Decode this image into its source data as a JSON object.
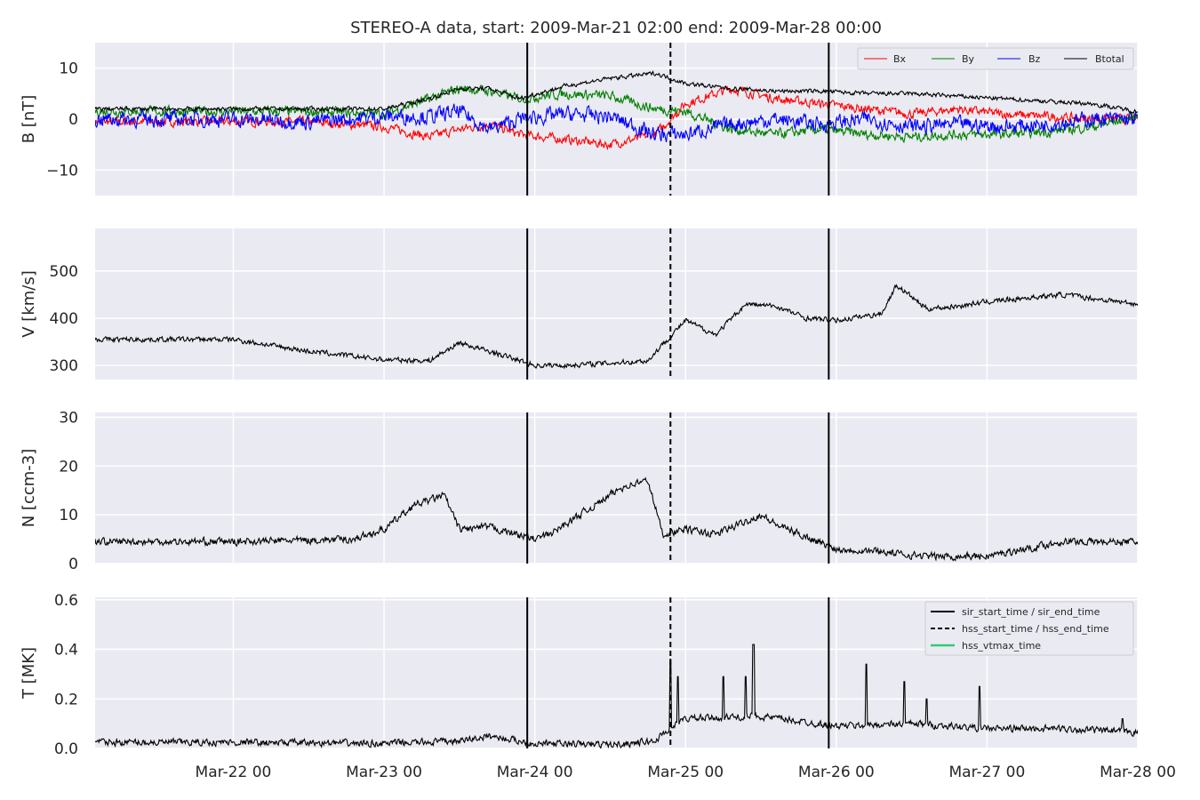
{
  "title": "STEREO-A data, start: 2009-Mar-21 02:00  end: 2009-Mar-28 00:00",
  "x_axis": {
    "tick_labels": [
      "Mar-22 00",
      "Mar-23 00",
      "Mar-24 00",
      "Mar-25 00",
      "Mar-26 00",
      "Mar-27 00",
      "Mar-28 00"
    ]
  },
  "colors": {
    "Bx": "#ff0000",
    "By": "#008000",
    "Bz": "#0000ff",
    "Btotal": "#000000",
    "hss_vtmax": "#2ecc71",
    "panel_bg": "#eaeaf2"
  },
  "chart_data": [
    {
      "type": "line",
      "panel": "B",
      "ylabel": "B [nT]",
      "ylim": [
        -15,
        15
      ],
      "yticks": [
        10,
        0,
        -10
      ],
      "ytick_labels": [
        "10",
        "0",
        "−10"
      ],
      "grid": true,
      "legend_position": "top-right",
      "x_days": [
        0,
        0.5,
        1.0,
        1.3,
        1.5,
        1.7,
        1.9,
        2.2,
        2.5,
        2.8,
        3.0,
        3.3,
        3.6,
        3.9,
        4.2,
        4.5,
        4.8,
        5.1,
        5.4,
        5.7,
        6.0
      ],
      "series": [
        {
          "name": "Bx",
          "values": [
            -0.5,
            -0.5,
            -1.5,
            -3.5,
            -2.0,
            -1.0,
            -3.0,
            -4.0,
            -5.0,
            -3.0,
            3.0,
            6.0,
            4.0,
            3.0,
            2.0,
            1.0,
            2.0,
            1.0,
            0.5,
            0.0,
            0.0
          ],
          "noise": 1.3
        },
        {
          "name": "By",
          "values": [
            1.5,
            1.5,
            1.0,
            4.0,
            6.0,
            5.5,
            4.0,
            5.0,
            4.5,
            2.0,
            1.5,
            -2.0,
            -3.0,
            -2.0,
            -3.0,
            -3.5,
            -3.0,
            -3.0,
            -2.5,
            -1.5,
            0.5
          ],
          "noise": 1.4
        },
        {
          "name": "Bz",
          "values": [
            0.0,
            -0.5,
            0.5,
            0.5,
            1.5,
            -2.0,
            0.0,
            1.0,
            0.5,
            -3.0,
            -3.0,
            -1.0,
            0.0,
            -1.0,
            0.0,
            -1.5,
            -1.0,
            -1.5,
            -1.0,
            0.0,
            0.0
          ],
          "noise": 2.2
        },
        {
          "name": "Btotal",
          "values": [
            2.0,
            2.0,
            2.0,
            4.0,
            6.0,
            6.0,
            4.0,
            6.5,
            8.0,
            9.0,
            7.0,
            6.0,
            5.5,
            5.5,
            5.0,
            5.0,
            4.5,
            4.0,
            3.5,
            3.0,
            1.5
          ],
          "noise": 0.6
        }
      ]
    },
    {
      "type": "line",
      "panel": "V",
      "ylabel": "V [km/s]",
      "ylim": [
        270,
        590
      ],
      "yticks": [
        500,
        400,
        300
      ],
      "ytick_labels": [
        "500",
        "400",
        "300"
      ],
      "grid": true,
      "x_days": [
        0,
        0.5,
        1.0,
        1.3,
        1.5,
        1.8,
        2.0,
        2.2,
        2.5,
        2.75,
        2.85,
        3.0,
        3.2,
        3.4,
        3.6,
        3.8,
        4.0,
        4.3,
        4.4,
        4.6,
        4.8,
        5.0,
        5.5,
        6.0
      ],
      "series": [
        {
          "name": "V",
          "values": [
            355,
            330,
            312,
            310,
            348,
            320,
            300,
            300,
            305,
            310,
            345,
            395,
            365,
            430,
            425,
            400,
            395,
            410,
            470,
            420,
            425,
            435,
            450,
            430
          ],
          "noise": 8
        }
      ]
    },
    {
      "type": "line",
      "panel": "N",
      "ylabel": "N [ccm-3]",
      "ylim": [
        0,
        31
      ],
      "yticks": [
        30,
        20,
        10,
        0
      ],
      "ytick_labels": [
        "30",
        "20",
        "10",
        "0"
      ],
      "grid": true,
      "x_days": [
        0,
        0.8,
        1.0,
        1.2,
        1.4,
        1.5,
        1.7,
        2.0,
        2.1,
        2.4,
        2.6,
        2.75,
        2.85,
        3.0,
        3.2,
        3.5,
        3.6,
        4.0,
        4.3,
        4.4,
        4.6,
        4.8,
        5.0,
        5.5,
        6.0
      ],
      "series": [
        {
          "name": "N",
          "values": [
            4.5,
            5.0,
            7.0,
            12.0,
            14.0,
            7.0,
            7.5,
            5.0,
            6.0,
            12.0,
            16.0,
            17.0,
            6.0,
            7.0,
            6.0,
            10.0,
            8.0,
            3.0,
            2.5,
            2.0,
            1.5,
            1.5,
            1.5,
            4.5,
            4.5
          ],
          "noise": 1.1
        }
      ]
    },
    {
      "type": "line",
      "panel": "T",
      "ylabel": "T [MK]",
      "ylim": [
        0,
        0.61
      ],
      "yticks": [
        0.6,
        0.4,
        0.2,
        0.0
      ],
      "ytick_labels": [
        "0.6",
        "0.4",
        "0.2",
        "0.0"
      ],
      "grid": true,
      "legend_position": "top-right",
      "x_days": [
        0,
        1.0,
        1.5,
        1.7,
        2.0,
        2.5,
        2.8,
        2.85,
        3.0,
        3.5,
        4.0,
        4.5,
        5.0,
        5.5,
        6.0
      ],
      "series": [
        {
          "name": "T",
          "values": [
            0.025,
            0.02,
            0.03,
            0.05,
            0.02,
            0.015,
            0.03,
            0.06,
            0.12,
            0.13,
            0.09,
            0.1,
            0.08,
            0.08,
            0.065
          ],
          "noise": 0.02
        }
      ],
      "spikes": [
        [
          2.9,
          0.36
        ],
        [
          2.95,
          0.29
        ],
        [
          3.25,
          0.29
        ],
        [
          3.45,
          0.42
        ],
        [
          3.4,
          0.29
        ],
        [
          4.2,
          0.34
        ],
        [
          4.45,
          0.27
        ],
        [
          4.6,
          0.2
        ],
        [
          4.95,
          0.25
        ],
        [
          5.9,
          0.12
        ]
      ]
    }
  ],
  "event_lines": {
    "sir_start_time": 1.95,
    "hss_start_time": 2.9,
    "sir_end_time": 3.95
  },
  "legend_B": [
    "Bx",
    "By",
    "Bz",
    "Btotal"
  ],
  "legend_T": [
    "sir_start_time / sir_end_time",
    "hss_start_time / hss_end_time",
    "hss_vtmax_time"
  ]
}
